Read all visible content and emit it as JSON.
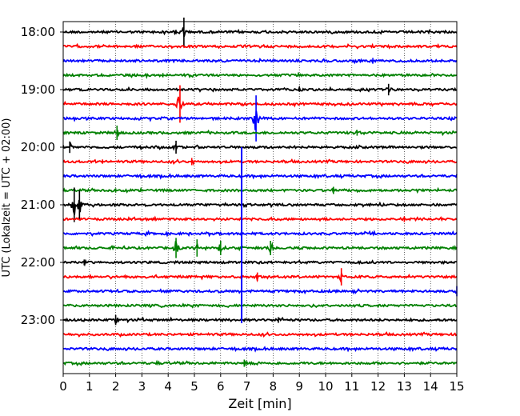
{
  "chart_data": {
    "type": "line",
    "title": "",
    "xlabel": "Zeit  [min]",
    "ylabel": "UTC (Lokalzeit = UTC + 02:00)",
    "xlim": [
      0,
      15
    ],
    "x_ticks": [
      "0",
      "1",
      "2",
      "3",
      "4",
      "5",
      "6",
      "7",
      "8",
      "9",
      "10",
      "11",
      "12",
      "13",
      "14",
      "15"
    ],
    "y_ticks": [
      "18:00",
      "19:00",
      "20:00",
      "21:00",
      "22:00",
      "23:00"
    ],
    "grid": "vertical dotted",
    "trace_interval_min": 15,
    "colors": [
      "#000000",
      "#ff0000",
      "#0000ff",
      "#008000"
    ],
    "traces": [
      {
        "start": "18:00",
        "color": "#000000",
        "events": [
          {
            "t": 4.6,
            "amp": 1.0
          },
          {
            "t": 4.3,
            "amp": 0.15
          }
        ]
      },
      {
        "start": "18:15",
        "color": "#ff0000",
        "events": []
      },
      {
        "start": "18:30",
        "color": "#0000ff",
        "events": [
          {
            "t": 11.8,
            "amp": 0.2
          }
        ]
      },
      {
        "start": "18:45",
        "color": "#008000",
        "events": [
          {
            "t": 3.8,
            "amp": 0.15
          }
        ]
      },
      {
        "start": "19:00",
        "color": "#000000",
        "events": [
          {
            "t": 12.4,
            "amp": 0.4
          },
          {
            "t": 9.0,
            "amp": 0.15
          }
        ]
      },
      {
        "start": "19:15",
        "color": "#ff0000",
        "events": [
          {
            "t": 4.45,
            "amp": 1.3
          }
        ]
      },
      {
        "start": "19:30",
        "color": "#0000ff",
        "events": [
          {
            "t": 7.35,
            "amp": 1.6
          }
        ]
      },
      {
        "start": "19:45",
        "color": "#008000",
        "events": [
          {
            "t": 2.05,
            "amp": 0.5
          },
          {
            "t": 11.2,
            "amp": 0.2
          }
        ]
      },
      {
        "start": "20:00",
        "color": "#000000",
        "events": [
          {
            "t": 0.25,
            "amp": 0.4
          },
          {
            "t": 4.3,
            "amp": 0.45
          }
        ]
      },
      {
        "start": "20:15",
        "color": "#ff0000",
        "events": [
          {
            "t": 4.9,
            "amp": 0.25
          },
          {
            "t": 1.5,
            "amp": 0.15
          }
        ]
      },
      {
        "start": "20:30",
        "color": "#0000ff",
        "events": []
      },
      {
        "start": "20:45",
        "color": "#008000",
        "events": [
          {
            "t": 10.3,
            "amp": 0.25
          },
          {
            "t": 2.0,
            "amp": 0.15
          }
        ]
      },
      {
        "start": "21:00",
        "color": "#000000",
        "events": [
          {
            "t": 0.42,
            "amp": 1.2
          },
          {
            "t": 0.62,
            "amp": 1.0
          }
        ]
      },
      {
        "start": "21:15",
        "color": "#ff0000",
        "events": [
          {
            "t": 13.0,
            "amp": 0.2
          }
        ]
      },
      {
        "start": "21:30",
        "color": "#0000ff",
        "events": [
          {
            "t": 6.8,
            "amp": 0.35
          }
        ]
      },
      {
        "start": "21:45",
        "color": "#008000",
        "events": [
          {
            "t": 4.3,
            "amp": 0.7
          },
          {
            "t": 5.1,
            "amp": 0.6
          },
          {
            "t": 6.0,
            "amp": 0.5
          },
          {
            "t": 7.9,
            "amp": 0.5
          }
        ]
      },
      {
        "start": "22:00",
        "color": "#000000",
        "events": [
          {
            "t": 0.8,
            "amp": 0.2
          }
        ]
      },
      {
        "start": "22:15",
        "color": "#ff0000",
        "events": [
          {
            "t": 10.6,
            "amp": 0.6
          },
          {
            "t": 7.4,
            "amp": 0.3
          }
        ]
      },
      {
        "start": "22:30",
        "color": "#0000ff",
        "events": [
          {
            "t": 15.0,
            "amp": 0.35
          }
        ]
      },
      {
        "start": "22:45",
        "color": "#008000",
        "events": []
      },
      {
        "start": "23:00",
        "color": "#000000",
        "events": [
          {
            "t": 2.0,
            "amp": 0.35
          },
          {
            "t": 8.2,
            "amp": 0.2
          }
        ]
      },
      {
        "start": "23:15",
        "color": "#ff0000",
        "events": []
      },
      {
        "start": "23:30",
        "color": "#0000ff",
        "events": []
      },
      {
        "start": "23:45",
        "color": "#008000",
        "events": [
          {
            "t": 6.9,
            "amp": 0.25
          }
        ]
      }
    ],
    "long_spikes": [
      {
        "t": 6.8,
        "from": "20:00",
        "to": "23:00",
        "color": "#0000ff"
      }
    ]
  }
}
